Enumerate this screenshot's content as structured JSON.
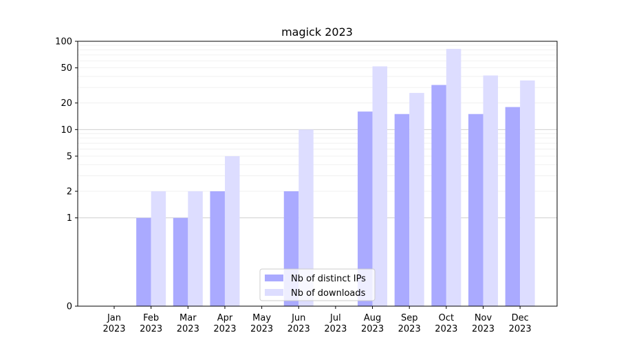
{
  "chart_data": {
    "type": "bar",
    "title": "magick 2023",
    "xlabel": "",
    "ylabel": "",
    "categories": [
      {
        "month": "Jan",
        "year": "2023"
      },
      {
        "month": "Feb",
        "year": "2023"
      },
      {
        "month": "Mar",
        "year": "2023"
      },
      {
        "month": "Apr",
        "year": "2023"
      },
      {
        "month": "May",
        "year": "2023"
      },
      {
        "month": "Jun",
        "year": "2023"
      },
      {
        "month": "Jul",
        "year": "2023"
      },
      {
        "month": "Aug",
        "year": "2023"
      },
      {
        "month": "Sep",
        "year": "2023"
      },
      {
        "month": "Oct",
        "year": "2023"
      },
      {
        "month": "Nov",
        "year": "2023"
      },
      {
        "month": "Dec",
        "year": "2023"
      }
    ],
    "series": [
      {
        "name": "Nb of distinct IPs",
        "color": "#aaaaff",
        "values": [
          0,
          1,
          1,
          2,
          0,
          2,
          0,
          16,
          15,
          32,
          15,
          18
        ]
      },
      {
        "name": "Nb of downloads",
        "color": "#ddddff",
        "values": [
          0,
          2,
          2,
          5,
          0,
          10,
          0,
          52,
          26,
          82,
          41,
          36
        ]
      }
    ],
    "yscale": "symlog",
    "ylim": [
      0,
      100
    ],
    "yticks": [
      {
        "value": 0,
        "label": "0"
      },
      {
        "value": 1,
        "label": "1"
      },
      {
        "value": 2,
        "label": "2"
      },
      {
        "value": 5,
        "label": "5"
      },
      {
        "value": 10,
        "label": "10"
      },
      {
        "value": 20,
        "label": "20"
      },
      {
        "value": 50,
        "label": "50"
      },
      {
        "value": 100,
        "label": "100"
      }
    ],
    "grid": true,
    "legend_position": "bottom-center"
  }
}
